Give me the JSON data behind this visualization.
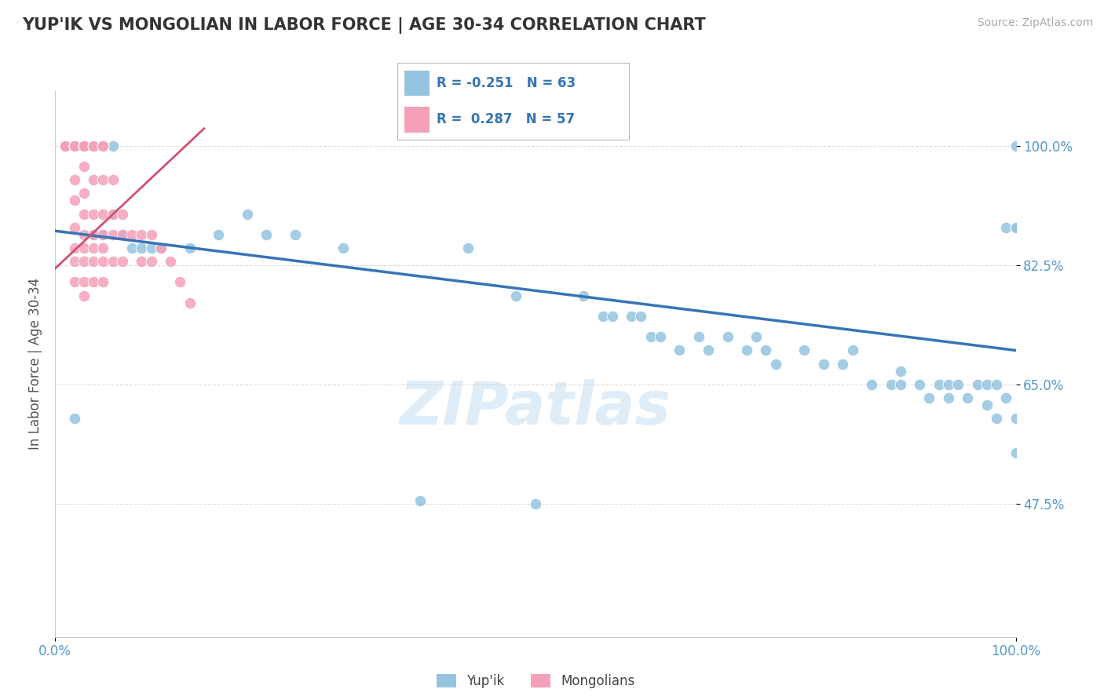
{
  "title": "YUP'IK VS MONGOLIAN IN LABOR FORCE | AGE 30-34 CORRELATION CHART",
  "source_text": "Source: ZipAtlas.com",
  "ylabel": "In Labor Force | Age 30-34",
  "xlim": [
    0.0,
    1.0
  ],
  "ylim": [
    0.28,
    1.08
  ],
  "yticks": [
    0.475,
    0.65,
    0.825,
    1.0
  ],
  "ytick_labels": [
    "47.5%",
    "65.0%",
    "82.5%",
    "100.0%"
  ],
  "xtick_labels": [
    "0.0%",
    "100.0%"
  ],
  "xticks": [
    0.0,
    1.0
  ],
  "blue_R": -0.251,
  "blue_N": 63,
  "pink_R": 0.287,
  "pink_N": 57,
  "blue_color": "#94c4e0",
  "pink_color": "#f4a0b8",
  "blue_line_color": "#3575b5",
  "pink_line_color": "#d05070",
  "legend_blue_label": "Yup'ik",
  "legend_pink_label": "Mongolians",
  "watermark": "ZIPatlas",
  "blue_trendline_x": [
    0.0,
    1.0
  ],
  "blue_trendline_y": [
    0.875,
    0.7
  ],
  "pink_trendline_x": [
    0.0,
    0.155
  ],
  "pink_trendline_y": [
    0.82,
    1.025
  ],
  "blue_x": [
    0.02,
    0.04,
    0.05,
    0.06,
    0.06,
    0.07,
    0.07,
    0.08,
    0.09,
    0.1,
    0.11,
    0.14,
    0.17,
    0.2,
    0.22,
    0.25,
    0.3,
    0.38,
    0.43,
    0.48,
    0.5,
    0.55,
    0.57,
    0.58,
    0.6,
    0.61,
    0.62,
    0.63,
    0.65,
    0.67,
    0.68,
    0.7,
    0.72,
    0.73,
    0.74,
    0.75,
    0.78,
    0.8,
    0.82,
    0.83,
    0.85,
    0.87,
    0.88,
    0.88,
    0.9,
    0.91,
    0.92,
    0.93,
    0.93,
    0.94,
    0.95,
    0.96,
    0.97,
    0.97,
    0.98,
    0.98,
    0.99,
    0.99,
    1.0,
    1.0,
    1.0,
    1.0,
    1.0
  ],
  "blue_y": [
    0.6,
    0.87,
    0.87,
    0.9,
    1.0,
    0.87,
    0.87,
    0.85,
    0.85,
    0.85,
    0.85,
    0.85,
    0.87,
    0.9,
    0.87,
    0.87,
    0.85,
    0.48,
    0.85,
    0.78,
    0.475,
    0.78,
    0.75,
    0.75,
    0.75,
    0.75,
    0.72,
    0.72,
    0.7,
    0.72,
    0.7,
    0.72,
    0.7,
    0.72,
    0.7,
    0.68,
    0.7,
    0.68,
    0.68,
    0.7,
    0.65,
    0.65,
    0.67,
    0.65,
    0.65,
    0.63,
    0.65,
    0.65,
    0.63,
    0.65,
    0.63,
    0.65,
    0.62,
    0.65,
    0.6,
    0.65,
    0.63,
    0.88,
    0.6,
    0.55,
    0.88,
    0.88,
    1.0
  ],
  "pink_x": [
    0.01,
    0.01,
    0.01,
    0.01,
    0.02,
    0.02,
    0.02,
    0.02,
    0.02,
    0.02,
    0.02,
    0.02,
    0.02,
    0.02,
    0.03,
    0.03,
    0.03,
    0.03,
    0.03,
    0.03,
    0.03,
    0.03,
    0.03,
    0.03,
    0.03,
    0.04,
    0.04,
    0.04,
    0.04,
    0.04,
    0.04,
    0.04,
    0.04,
    0.05,
    0.05,
    0.05,
    0.05,
    0.05,
    0.05,
    0.05,
    0.05,
    0.06,
    0.06,
    0.06,
    0.06,
    0.07,
    0.07,
    0.07,
    0.08,
    0.09,
    0.09,
    0.1,
    0.1,
    0.11,
    0.12,
    0.13,
    0.14
  ],
  "pink_y": [
    1.0,
    1.0,
    1.0,
    1.0,
    1.0,
    1.0,
    1.0,
    1.0,
    0.95,
    0.92,
    0.88,
    0.85,
    0.83,
    0.8,
    1.0,
    1.0,
    1.0,
    0.97,
    0.93,
    0.9,
    0.87,
    0.85,
    0.83,
    0.8,
    0.78,
    1.0,
    1.0,
    0.95,
    0.9,
    0.87,
    0.85,
    0.83,
    0.8,
    1.0,
    1.0,
    0.95,
    0.9,
    0.87,
    0.85,
    0.83,
    0.8,
    0.95,
    0.9,
    0.87,
    0.83,
    0.9,
    0.87,
    0.83,
    0.87,
    0.87,
    0.83,
    0.87,
    0.83,
    0.85,
    0.83,
    0.8,
    0.77
  ]
}
